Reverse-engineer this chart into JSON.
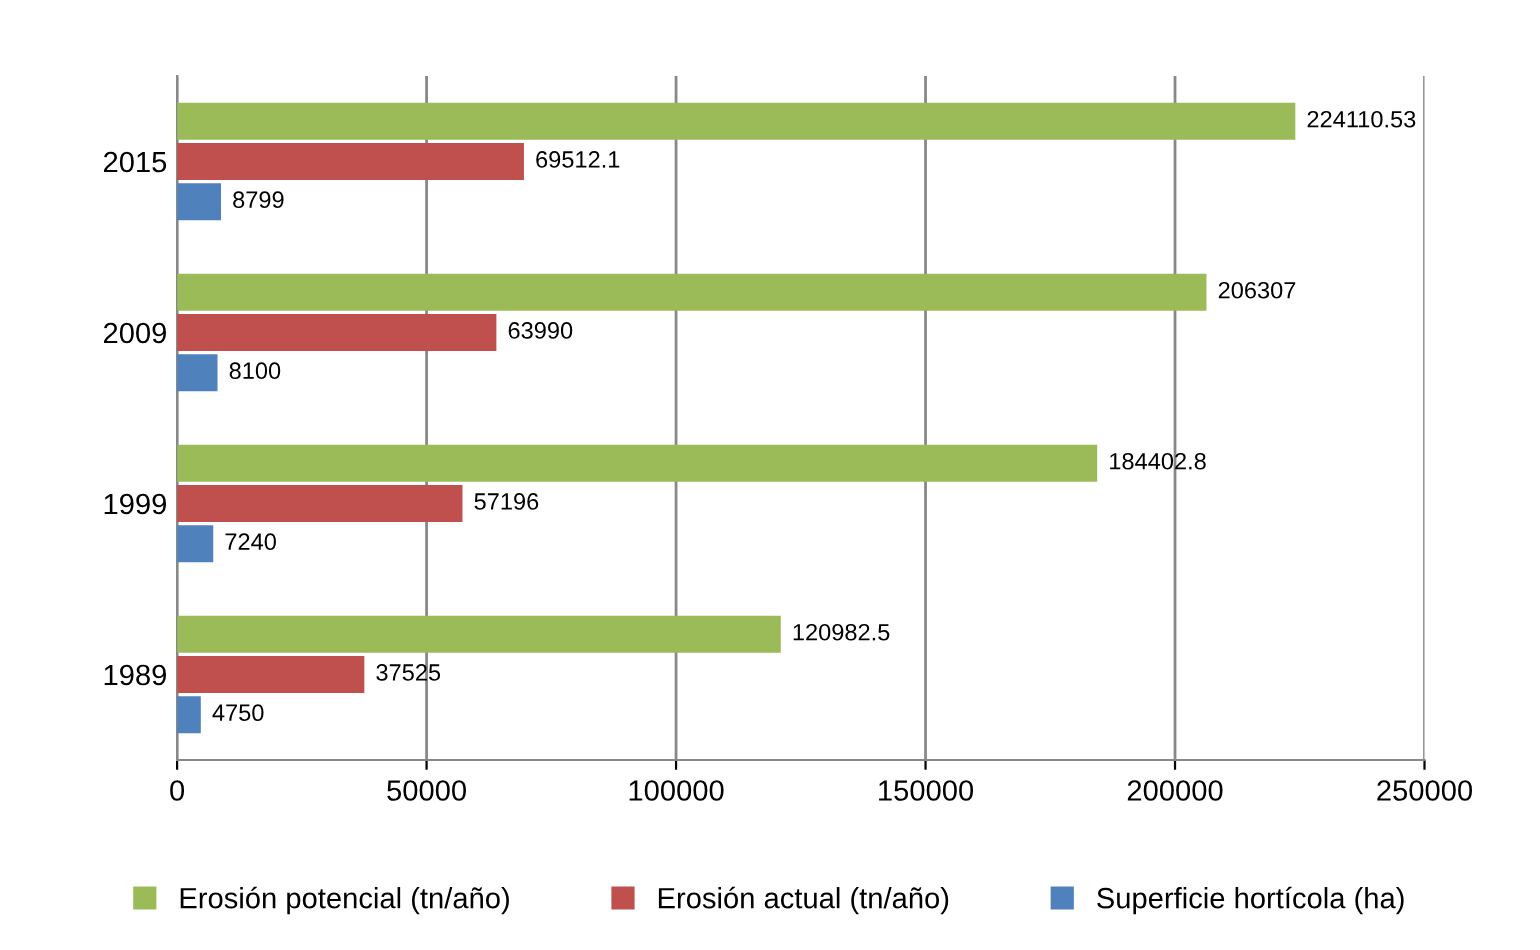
{
  "chart_data": {
    "type": "bar",
    "orientation": "horizontal",
    "categories": [
      "2015",
      "2009",
      "1999",
      "1989"
    ],
    "series": [
      {
        "name": "Erosión potencial (tn/año)",
        "color": "#9bbb59",
        "values": [
          224110.53,
          206307,
          184402.8,
          120982.5
        ]
      },
      {
        "name": "Erosión actual (tn/año)",
        "color": "#c0504d",
        "values": [
          69512.1,
          63990,
          57196,
          37525
        ]
      },
      {
        "name": "Superficie hortícola (ha)",
        "color": "#4f81bd",
        "values": [
          8799,
          8100,
          7240,
          4750
        ]
      }
    ],
    "xlim": [
      0,
      250000
    ],
    "xticks": [
      0,
      50000,
      100000,
      150000,
      200000,
      250000
    ],
    "grid": "x",
    "legend": "bottom",
    "data_labels": true
  }
}
